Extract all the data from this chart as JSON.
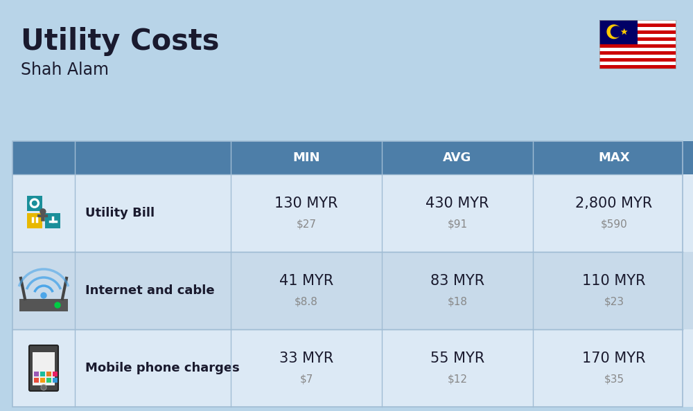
{
  "title": "Utility Costs",
  "subtitle": "Shah Alam",
  "background_color": "#b8d4e8",
  "header_bg_color": "#4d7ea8",
  "header_text_color": "#ffffff",
  "row_bg_color_odd": "#dce9f5",
  "row_bg_color_even": "#c8daea",
  "separator_color": "#a0bcd4",
  "col_headers": [
    "MIN",
    "AVG",
    "MAX"
  ],
  "rows": [
    {
      "name": "Utility Bill",
      "min_myr": "130 MYR",
      "min_usd": "$27",
      "avg_myr": "430 MYR",
      "avg_usd": "$91",
      "max_myr": "2,800 MYR",
      "max_usd": "$590",
      "icon": "utility"
    },
    {
      "name": "Internet and cable",
      "min_myr": "41 MYR",
      "min_usd": "$8.8",
      "avg_myr": "83 MYR",
      "avg_usd": "$18",
      "max_myr": "110 MYR",
      "max_usd": "$23",
      "icon": "internet"
    },
    {
      "name": "Mobile phone charges",
      "min_myr": "33 MYR",
      "min_usd": "$7",
      "avg_myr": "55 MYR",
      "avg_usd": "$12",
      "max_myr": "170 MYR",
      "max_usd": "$35",
      "icon": "mobile"
    }
  ],
  "title_fontsize": 30,
  "subtitle_fontsize": 17,
  "header_fontsize": 13,
  "row_name_fontsize": 13,
  "row_value_fontsize": 15,
  "row_subvalue_fontsize": 11,
  "text_color": "#1a1a2e",
  "subvalue_color": "#888888"
}
